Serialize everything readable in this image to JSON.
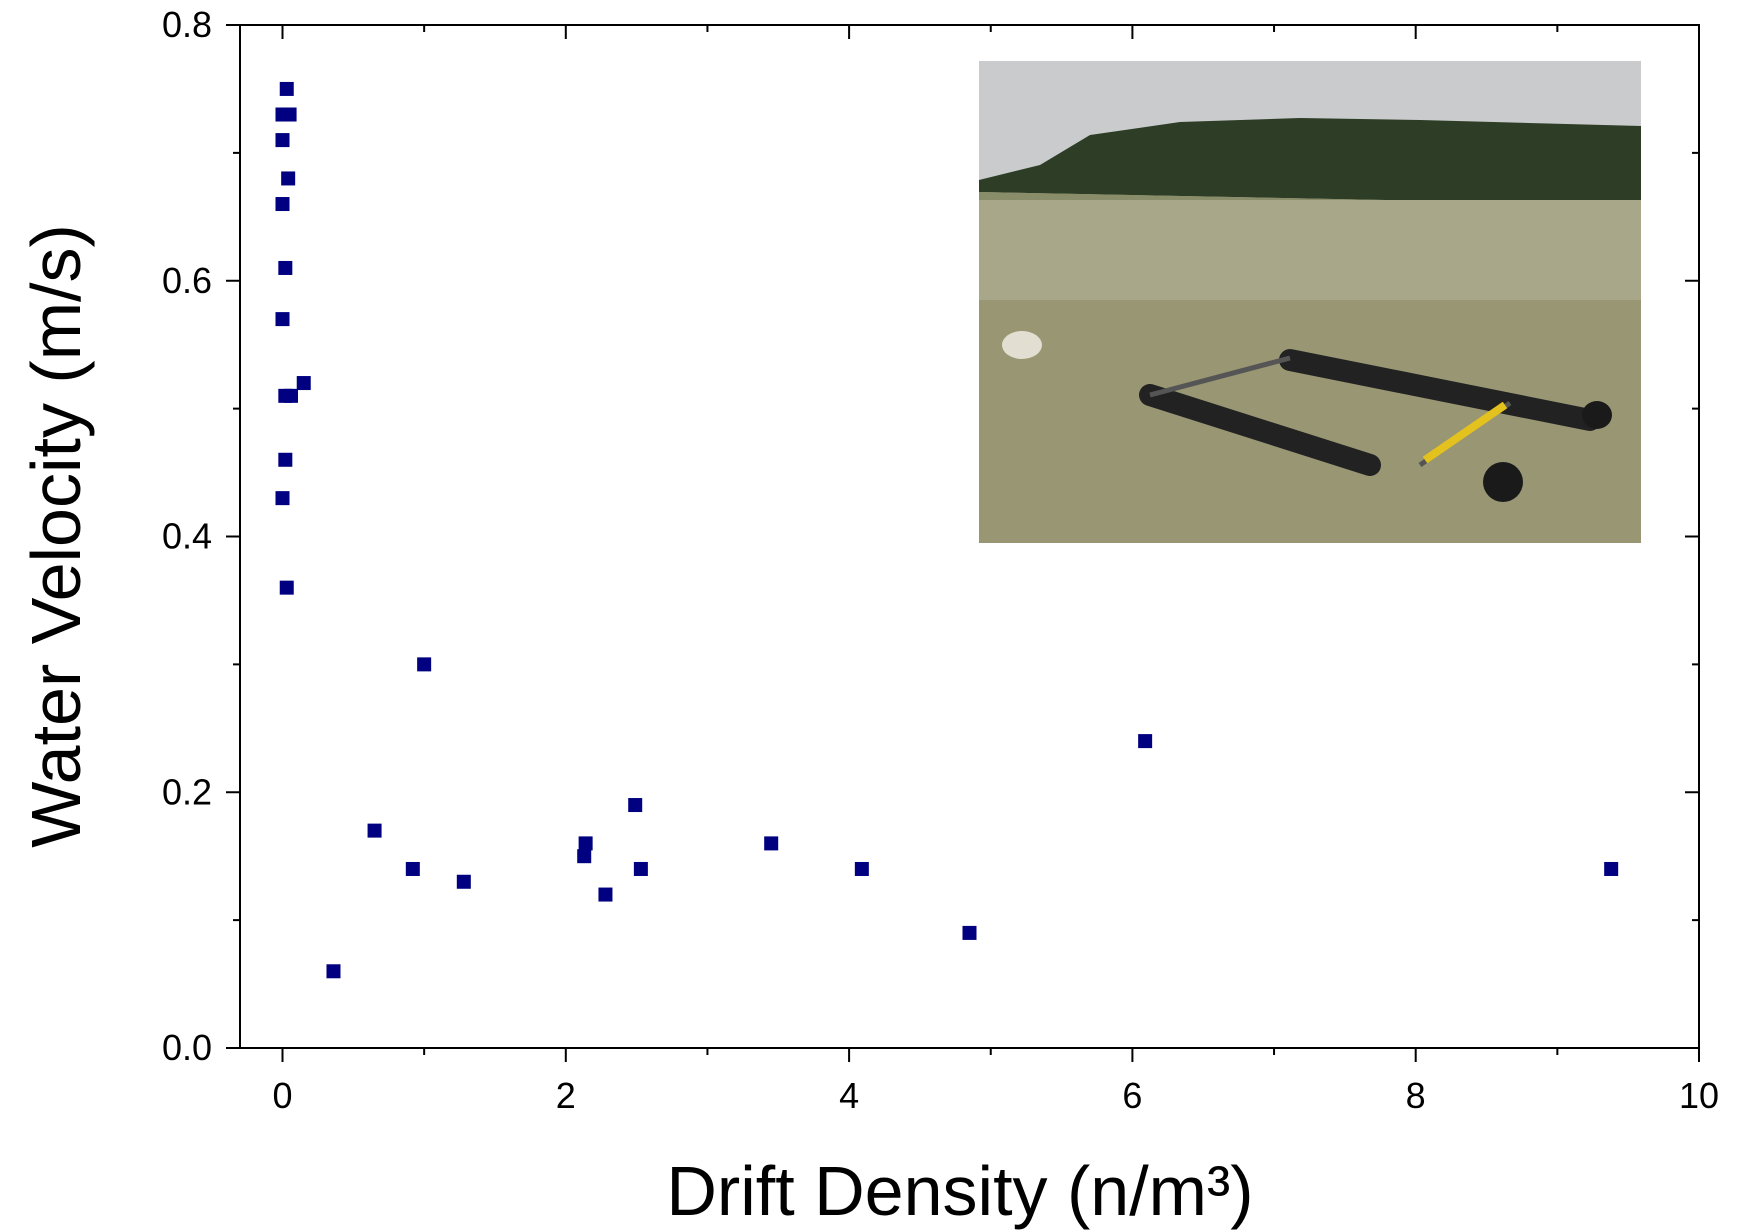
{
  "chart_data": {
    "type": "scatter",
    "xlabel": "Drift Density  (n/m³)",
    "ylabel": "Water Velocity (m/s)",
    "series": [
      {
        "color": "#000080",
        "x": [
          0.03,
          0.0,
          0.05,
          0.0,
          0.04,
          0.0,
          0.02,
          0.0,
          0.15,
          0.02,
          0.06,
          0.02,
          0.0,
          0.03,
          1.0,
          0.65,
          0.92,
          1.28,
          0.36,
          2.14,
          2.13,
          2.28,
          2.49,
          2.53,
          3.45,
          4.09,
          4.85,
          6.09,
          9.38
        ],
        "values": [
          0.75,
          0.73,
          0.73,
          0.71,
          0.68,
          0.66,
          0.61,
          0.57,
          0.52,
          0.51,
          0.51,
          0.46,
          0.43,
          0.36,
          0.3,
          0.17,
          0.14,
          0.13,
          0.06,
          0.16,
          0.15,
          0.12,
          0.19,
          0.14,
          0.16,
          0.14,
          0.09,
          0.24,
          0.14
        ]
      }
    ],
    "xlim": [
      -0.3,
      10
    ],
    "xticks": [
      0,
      2,
      4,
      6,
      8,
      10
    ],
    "ylim": [
      0,
      0.8
    ],
    "yticks": [
      {
        "value": 0,
        "label": "0.0"
      },
      0.2,
      0.4,
      0.6,
      0.8
    ]
  }
}
